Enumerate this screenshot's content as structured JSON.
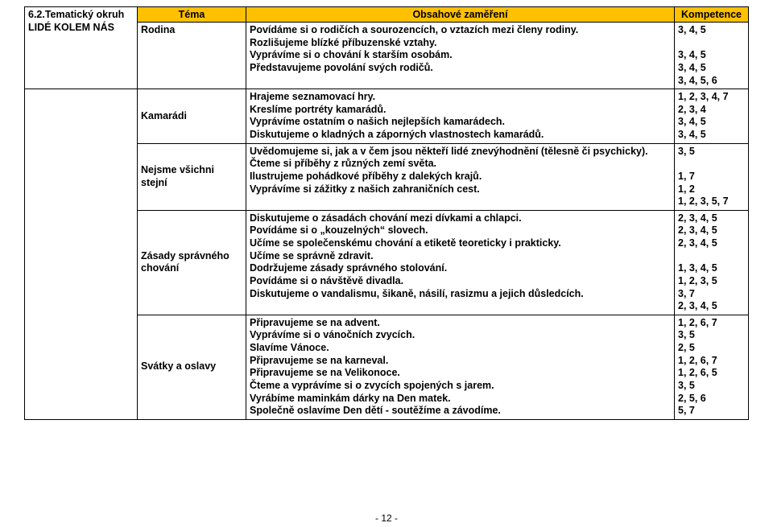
{
  "header": {
    "c1": "Téma",
    "c2": "Obsahové zaměření",
    "c3": "Kompetence"
  },
  "leftHeading": {
    "l1": "6.2.Tematický okruh",
    "l2": "LIDÉ KOLEM NÁS"
  },
  "rows": [
    {
      "theme": "Rodina",
      "content": [
        "Povídáme si o rodičích a sourozencích, o vztazích mezi členy rodiny.",
        "Rozlišujeme blízké příbuzenské vztahy.",
        "Vyprávíme si o chování k starším osobám.",
        "Představujeme povolání svých rodičů."
      ],
      "comp": [
        "3, 4, 5",
        "",
        "3, 4, 5",
        "3, 4, 5",
        "3, 4, 5, 6"
      ]
    },
    {
      "theme": "Kamarádi",
      "content": [
        "Hrajeme seznamovací hry.",
        "Kreslíme portréty kamarádů.",
        "Vyprávíme ostatním o našich nejlepších kamarádech.",
        "Diskutujeme o kladných a záporných vlastnostech kamarádů."
      ],
      "comp": [
        "1, 2, 3, 4, 7",
        "2, 3, 4",
        "3, 4, 5",
        "3, 4, 5"
      ]
    },
    {
      "theme": "Nejsme všichni stejní",
      "content": [
        "Uvědomujeme si, jak a v čem jsou někteří lidé znevýhodnění (tělesně či psychicky).",
        "Čteme si příběhy z různých zemí světa.",
        "Ilustrujeme pohádkové příběhy z dalekých krajů.",
        "Vyprávíme si zážitky z našich zahraničních cest."
      ],
      "comp": [
        "3, 5",
        "",
        "1, 7",
        "1, 2",
        "1, 2, 3, 5, 7"
      ]
    },
    {
      "theme": "Zásady správného chování",
      "content": [
        "Diskutujeme o zásadách chování mezi dívkami a chlapci.",
        "Povídáme si o „kouzelných“ slovech.",
        "Učíme se společenskému chování a etiketě teoreticky i prakticky.",
        "Učíme se správně zdravit.",
        "Dodržujeme zásady  správného stolování.",
        "Povídáme si o návštěvě divadla.",
        "Diskutujeme o vandalismu, šikaně, násilí, rasizmu a jejich důsledcích."
      ],
      "comp": [
        "2, 3, 4, 5",
        "2, 3, 4, 5",
        "2, 3, 4, 5",
        "",
        "1, 3, 4, 5",
        "1, 2, 3, 5",
        "3, 7",
        "2, 3, 4, 5"
      ]
    },
    {
      "theme": "Svátky a oslavy",
      "content": [
        "Připravujeme se na advent.",
        "Vyprávíme si o vánočních zvycích.",
        "Slavíme Vánoce.",
        "Připravujeme se na karneval.",
        "Připravujeme se na Velikonoce.",
        "Čteme a vyprávíme si o zvycích spojených s jarem.",
        "Vyrábíme maminkám dárky na Den matek.",
        "Společně oslavíme Den dětí - soutěžíme a závodíme."
      ],
      "comp": [
        "1, 2, 6, 7",
        "3, 5",
        "2, 5",
        "1, 2, 6, 7",
        "1, 2, 6, 5",
        "3, 5",
        "2, 5, 6",
        "5, 7"
      ]
    }
  ],
  "pageNumber": "- 12 -"
}
